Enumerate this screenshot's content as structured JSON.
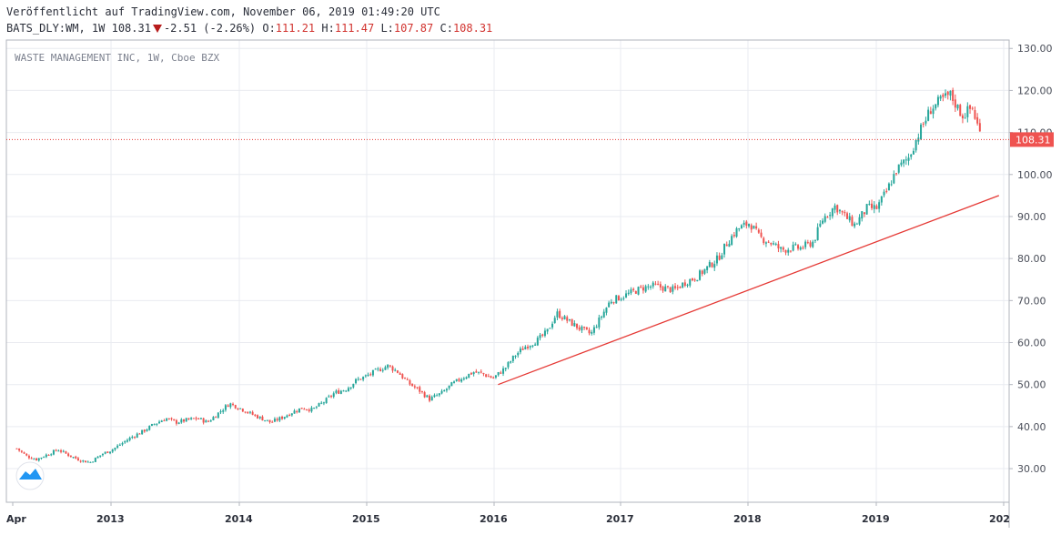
{
  "header": {
    "published": "Veröffentlicht auf TradingView.com, November 06, 2019 01:49:20 UTC",
    "symbol": "BATS_DLY:WM, 1W 108.31",
    "change": "-2.51 (-2.26%)",
    "o_label": "O:",
    "o_value": "111.21",
    "h_label": "H:",
    "h_value": "111.47",
    "l_label": "L:",
    "l_value": "107.87",
    "c_label": "C:",
    "c_value": "108.31"
  },
  "chart_data": {
    "type": "candlestick",
    "title": "WASTE MANAGEMENT INC, 1W, Cboe BZX",
    "ylim": [
      22,
      132
    ],
    "y_ticks": [
      130,
      120,
      110,
      100,
      90,
      80,
      70,
      60,
      50,
      40,
      30
    ],
    "y_tick_labels": [
      "130.00",
      "120.00",
      "110.00",
      "100.00",
      "90.00",
      "80.00",
      "70.00",
      "60.00",
      "50.00",
      "40.00",
      "30.00"
    ],
    "x_ticks": [
      "Apr",
      "2013",
      "2014",
      "2015",
      "2016",
      "2017",
      "2018",
      "2019",
      "202"
    ],
    "last_price": 108.31,
    "last_price_label": "108.31",
    "grid": true,
    "colors": {
      "up": "#26a69a",
      "down": "#ef5350",
      "trendline": "#e53935",
      "price_line": "#e53935"
    },
    "trendline": {
      "start": {
        "date": "2016-01-15",
        "value": 50.0
      },
      "end": {
        "date": "2019-12-20",
        "value": 95.0
      }
    },
    "series": [
      {
        "values": [
          [
            "2012-04-06",
            34.8
          ],
          [
            "2012-05-04",
            33.0
          ],
          [
            "2012-06-01",
            32.2
          ],
          [
            "2012-07-06",
            33.5
          ],
          [
            "2012-08-03",
            34.5
          ],
          [
            "2012-09-07",
            33.0
          ],
          [
            "2012-10-05",
            32.0
          ],
          [
            "2012-11-02",
            31.5
          ],
          [
            "2012-12-07",
            33.5
          ],
          [
            "2013-01-04",
            34.5
          ],
          [
            "2013-02-01",
            36.0
          ],
          [
            "2013-03-01",
            37.5
          ],
          [
            "2013-04-05",
            39.0
          ],
          [
            "2013-05-03",
            40.5
          ],
          [
            "2013-06-07",
            42.0
          ],
          [
            "2013-07-05",
            41.0
          ],
          [
            "2013-08-02",
            41.5
          ],
          [
            "2013-09-06",
            42.0
          ],
          [
            "2013-10-04",
            41.0
          ],
          [
            "2013-11-01",
            43.0
          ],
          [
            "2013-12-06",
            45.5
          ],
          [
            "2014-01-03",
            44.5
          ],
          [
            "2014-02-07",
            43.0
          ],
          [
            "2014-03-07",
            42.0
          ],
          [
            "2014-04-04",
            41.0
          ],
          [
            "2014-05-02",
            42.0
          ],
          [
            "2014-06-06",
            43.5
          ],
          [
            "2014-07-04",
            44.5
          ],
          [
            "2014-08-01",
            44.0
          ],
          [
            "2014-09-05",
            46.0
          ],
          [
            "2014-10-03",
            48.0
          ],
          [
            "2014-11-07",
            49.0
          ],
          [
            "2014-12-05",
            51.0
          ],
          [
            "2015-01-02",
            52.0
          ],
          [
            "2015-02-06",
            53.5
          ],
          [
            "2015-03-06",
            54.5
          ],
          [
            "2015-04-03",
            53.0
          ],
          [
            "2015-05-01",
            50.5
          ],
          [
            "2015-06-05",
            48.5
          ],
          [
            "2015-07-03",
            46.5
          ],
          [
            "2015-08-07",
            48.0
          ],
          [
            "2015-09-04",
            50.0
          ],
          [
            "2015-10-02",
            51.5
          ],
          [
            "2015-11-06",
            53.0
          ],
          [
            "2015-12-04",
            52.5
          ],
          [
            "2016-01-01",
            51.5
          ],
          [
            "2016-02-05",
            54.0
          ],
          [
            "2016-03-04",
            57.0
          ],
          [
            "2016-04-01",
            59.0
          ],
          [
            "2016-05-06",
            60.5
          ],
          [
            "2016-06-03",
            62.5
          ],
          [
            "2016-07-01",
            67.0
          ],
          [
            "2016-08-05",
            65.0
          ],
          [
            "2016-09-02",
            63.5
          ],
          [
            "2016-10-07",
            62.0
          ],
          [
            "2016-11-04",
            66.0
          ],
          [
            "2016-12-02",
            70.0
          ],
          [
            "2017-01-06",
            71.0
          ],
          [
            "2017-02-03",
            72.0
          ],
          [
            "2017-03-03",
            73.0
          ],
          [
            "2017-04-07",
            73.5
          ],
          [
            "2017-05-05",
            73.0
          ],
          [
            "2017-06-02",
            72.5
          ],
          [
            "2017-07-07",
            74.5
          ],
          [
            "2017-08-04",
            75.5
          ],
          [
            "2017-09-01",
            77.5
          ],
          [
            "2017-10-06",
            80.0
          ],
          [
            "2017-11-03",
            84.0
          ],
          [
            "2017-12-01",
            87.0
          ],
          [
            "2018-01-05",
            88.5
          ],
          [
            "2018-02-02",
            85.0
          ],
          [
            "2018-03-02",
            84.0
          ],
          [
            "2018-04-06",
            82.0
          ],
          [
            "2018-05-04",
            82.5
          ],
          [
            "2018-06-01",
            82.5
          ],
          [
            "2018-07-06",
            84.0
          ],
          [
            "2018-08-03",
            89.5
          ],
          [
            "2018-09-07",
            92.5
          ],
          [
            "2018-10-05",
            90.0
          ],
          [
            "2018-11-02",
            88.0
          ],
          [
            "2018-12-07",
            92.0
          ],
          [
            "2019-01-04",
            92.0
          ],
          [
            "2019-02-01",
            96.0
          ],
          [
            "2019-03-01",
            101.0
          ],
          [
            "2019-04-05",
            104.0
          ],
          [
            "2019-05-03",
            109.5
          ],
          [
            "2019-06-07",
            115.5
          ],
          [
            "2019-07-05",
            117.5
          ],
          [
            "2019-08-02",
            119.0
          ],
          [
            "2019-09-06",
            114.0
          ],
          [
            "2019-10-04",
            116.0
          ],
          [
            "2019-11-01",
            108.31
          ]
        ]
      }
    ]
  }
}
